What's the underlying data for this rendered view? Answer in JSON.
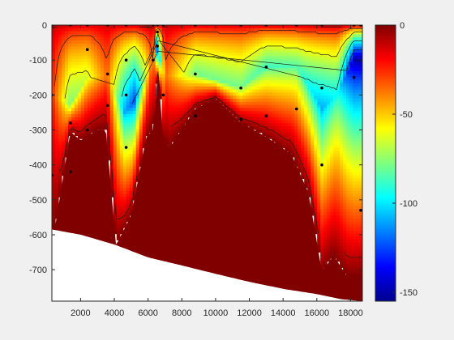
{
  "chart_data": {
    "type": "heatmap",
    "title": "",
    "xlabel": "",
    "ylabel": "",
    "xlim": [
      300,
      18700
    ],
    "ylim": [
      -790,
      0
    ],
    "x_ticks": [
      2000,
      4000,
      6000,
      8000,
      10000,
      12000,
      14000,
      16000,
      18000
    ],
    "y_ticks": [
      0,
      -100,
      -200,
      -300,
      -400,
      -500,
      -600,
      -700
    ],
    "x_tick_labels": [
      "2000",
      "4000",
      "6000",
      "8000",
      "10000",
      "12000",
      "14000",
      "16000",
      "18000"
    ],
    "y_tick_labels": [
      "0",
      "-100",
      "-200",
      "-300",
      "-400",
      "-500",
      "-600",
      "-700"
    ],
    "colorbar": {
      "limits": [
        -155,
        0
      ],
      "ticks": [
        0,
        -50,
        -100,
        -150
      ],
      "tick_labels": [
        "0",
        "-50",
        "-100",
        "-150"
      ],
      "colormap": "jet"
    },
    "grid": false,
    "legend": "none",
    "seafloor_profile": {
      "x": [
        300,
        500,
        1400,
        2000,
        3000,
        3500,
        4100,
        5000,
        5900,
        6300,
        6600,
        6900,
        7300,
        8800,
        10000,
        11500,
        13000,
        14500,
        15500,
        16300,
        17000,
        17800,
        18700
      ],
      "y": [
        -580,
        -575,
        -305,
        -330,
        -300,
        -300,
        -630,
        -545,
        -320,
        -300,
        -130,
        -330,
        -350,
        -240,
        -210,
        -280,
        -320,
        -370,
        -480,
        -705,
        -660,
        -720,
        -715
      ]
    },
    "missing_region_boundary": {
      "x": [
        300,
        2000,
        4000,
        6000,
        8000,
        10000,
        12000,
        14000,
        16000,
        17500,
        18700
      ],
      "y": [
        -585,
        -600,
        -628,
        -665,
        -688,
        -712,
        -735,
        -755,
        -770,
        -785,
        -790
      ]
    },
    "field_samples": {
      "x": [
        300,
        1400,
        2400,
        3600,
        4600,
        5200,
        6300,
        6550,
        7000,
        8800,
        11500,
        13000,
        14800,
        16300,
        17200,
        18200
      ],
      "surface_value": [
        -8,
        -10,
        -12,
        -10,
        -8,
        -6,
        -5,
        -5,
        -8,
        -10,
        -10,
        -10,
        -8,
        -6,
        -5,
        -5
      ],
      "minimum_value": [
        -25,
        -78,
        -65,
        -35,
        -110,
        -125,
        -30,
        -130,
        -35,
        -80,
        -80,
        -88,
        -85,
        -110,
        -95,
        -150
      ],
      "depth_of_minimum": [
        -200,
        -230,
        -150,
        -150,
        -250,
        -220,
        -100,
        -70,
        -150,
        -140,
        -180,
        -120,
        -120,
        -240,
        -200,
        -100
      ]
    },
    "sample_points": {
      "x": [
        300,
        300,
        300,
        1400,
        1400,
        1400,
        2400,
        2400,
        2400,
        3600,
        3600,
        3600,
        4700,
        4700,
        4700,
        4700,
        6300,
        6300,
        6550,
        6550,
        6550,
        6900,
        6900,
        8800,
        8800,
        8800,
        11500,
        11500,
        11500,
        13000,
        13000,
        13000,
        14800,
        14800,
        16300,
        16300,
        16300,
        18200,
        18200,
        18600,
        18600
      ],
      "y": [
        0,
        -200,
        -430,
        0,
        -280,
        -420,
        0,
        -70,
        -300,
        0,
        -140,
        -230,
        0,
        -100,
        -200,
        -350,
        0,
        -100,
        0,
        -20,
        -60,
        0,
        -200,
        0,
        -140,
        -260,
        0,
        -180,
        -270,
        0,
        -120,
        -260,
        0,
        -240,
        0,
        -180,
        -400,
        0,
        -150,
        0,
        -530
      ]
    }
  }
}
